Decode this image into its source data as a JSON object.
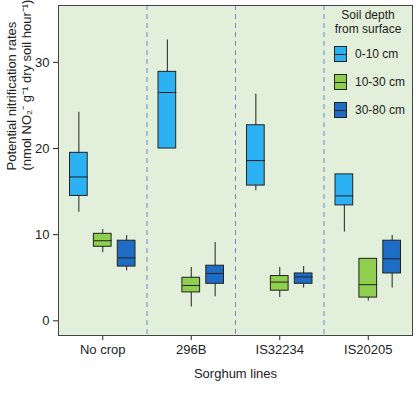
{
  "chart_data": {
    "type": "boxplot",
    "x_label": "Sorghum lines",
    "y_label": "Potential nitrification rates\n(nmol NO₂⁻ g⁻¹ dry soil hour⁻¹)",
    "categories": [
      "No crop",
      "296B",
      "IS32234",
      "IS20205"
    ],
    "ylim": [
      -1.7,
      36.6
    ],
    "yticks": [
      0,
      10,
      20,
      30
    ],
    "legend": "upper right",
    "legend_title": "Soil depth from surface",
    "series": [
      {
        "name": "0-10 cm",
        "color": "#2cb2f2",
        "min": [
          12.6,
          20.0,
          15.1,
          10.3
        ],
        "q1": [
          14.5,
          20.0,
          15.7,
          13.4
        ],
        "median": [
          16.7,
          26.5,
          18.6,
          14.5
        ],
        "q3": [
          19.5,
          28.9,
          22.7,
          17.0
        ],
        "max": [
          24.2,
          32.6,
          26.3,
          17.0
        ]
      },
      {
        "name": "10-30 cm",
        "color": "#8fce4e",
        "min": [
          7.9,
          1.6,
          2.7,
          2.3
        ],
        "q1": [
          8.6,
          3.3,
          3.5,
          2.7
        ],
        "median": [
          9.3,
          4.1,
          4.5,
          4.2
        ],
        "q3": [
          10.1,
          5.0,
          5.2,
          7.2
        ],
        "max": [
          10.6,
          6.2,
          6.2,
          7.2
        ]
      },
      {
        "name": "30-80 cm",
        "color": "#1f6cc4",
        "min": [
          5.8,
          2.8,
          3.8,
          3.8
        ],
        "q1": [
          6.3,
          4.3,
          4.3,
          5.5
        ],
        "median": [
          7.3,
          5.5,
          5.1,
          7.2
        ],
        "q3": [
          9.3,
          6.4,
          5.5,
          9.3
        ],
        "max": [
          9.9,
          9.1,
          6.3,
          9.9
        ]
      }
    ]
  }
}
